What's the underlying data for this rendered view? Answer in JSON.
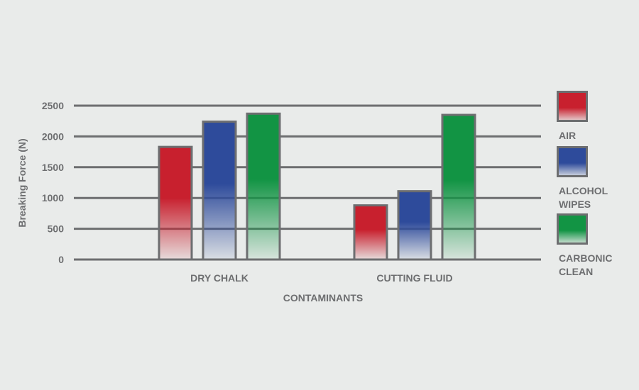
{
  "chart_data": {
    "type": "bar",
    "categories": [
      "DRY CHALK",
      "CUTTING FLUID"
    ],
    "series": [
      {
        "name": "AIR",
        "values": [
          1830,
          880
        ]
      },
      {
        "name": "ALCOHOL WIPES",
        "values": [
          2240,
          1110
        ]
      },
      {
        "name": "CARBONIC CLEAN",
        "values": [
          2370,
          2350
        ]
      }
    ],
    "title": "",
    "xlabel": "CONTAMINANTS",
    "ylabel": "Breaking Force (N)",
    "ylim": [
      0,
      2500
    ],
    "yticks": [
      0,
      500,
      1000,
      1500,
      2000,
      2500
    ],
    "grid": true,
    "legend_position": "right",
    "colors": {
      "AIR": "#c8202e",
      "ALCOHOL WIPES": "#2e4b9b",
      "CARBONIC CLEAN": "#129444",
      "gridline": "#6d6e70",
      "text": "#6d6e70",
      "background": "#e9ebea"
    }
  },
  "legend": {
    "items": [
      {
        "lines": [
          "AIR"
        ]
      },
      {
        "lines": [
          "ALCOHOL",
          "WIPES"
        ]
      },
      {
        "lines": [
          "CARBONIC",
          "CLEAN"
        ]
      }
    ]
  }
}
